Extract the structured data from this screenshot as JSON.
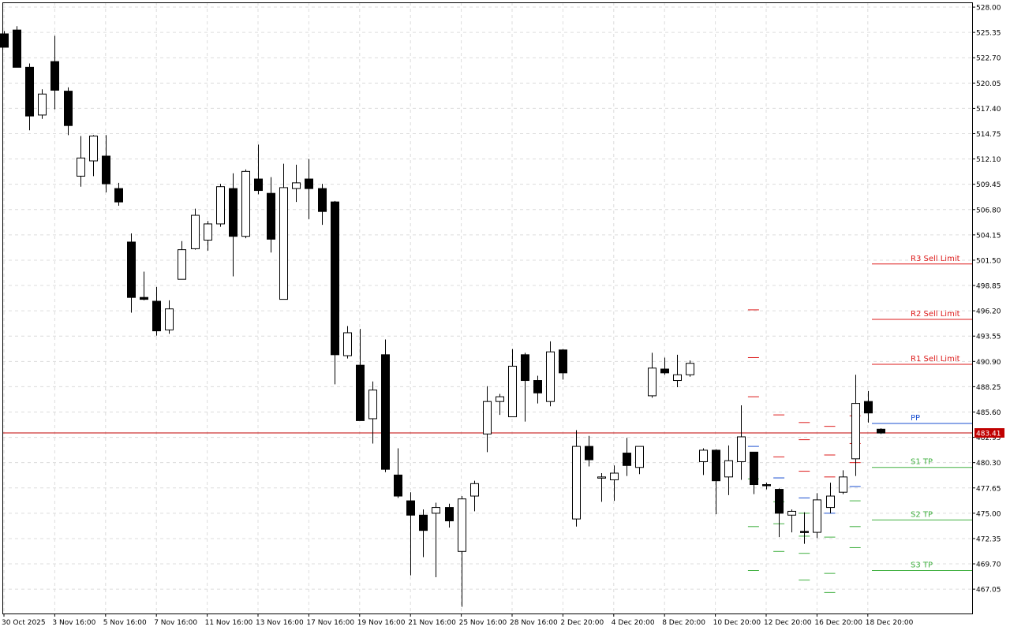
{
  "chart_data": {
    "type": "candlestick",
    "ylim": [
      464.5,
      528.5
    ],
    "y_ticks": [
      "528.00",
      "525.35",
      "522.70",
      "520.05",
      "517.40",
      "514.75",
      "512.10",
      "509.45",
      "506.80",
      "504.15",
      "501.50",
      "498.85",
      "496.20",
      "493.55",
      "490.90",
      "488.25",
      "485.60",
      "482.95",
      "480.30",
      "477.65",
      "475.00",
      "472.35",
      "469.70",
      "467.05"
    ],
    "x_labels": [
      {
        "i": 0,
        "text": "30 Oct 2025"
      },
      {
        "i": 4,
        "text": "3 Nov 16:00"
      },
      {
        "i": 8,
        "text": "5 Nov 16:00"
      },
      {
        "i": 12,
        "text": "7 Nov 16:00"
      },
      {
        "i": 16,
        "text": "11 Nov 16:00"
      },
      {
        "i": 20,
        "text": "13 Nov 16:00"
      },
      {
        "i": 24,
        "text": "17 Nov 16:00"
      },
      {
        "i": 28,
        "text": "19 Nov 16:00"
      },
      {
        "i": 32,
        "text": "21 Nov 16:00"
      },
      {
        "i": 36,
        "text": "25 Nov 16:00"
      },
      {
        "i": 40,
        "text": "28 Nov 16:00"
      },
      {
        "i": 44,
        "text": "2 Dec 20:00"
      },
      {
        "i": 48,
        "text": "4 Dec 20:00"
      },
      {
        "i": 52,
        "text": "8 Dec 20:00"
      },
      {
        "i": 56,
        "text": "10 Dec 20:00"
      },
      {
        "i": 60,
        "text": "12 Dec 20:00"
      },
      {
        "i": 64,
        "text": "16 Dec 20:00"
      },
      {
        "i": 68,
        "text": "18 Dec 20:00"
      }
    ],
    "grid": true,
    "candles": [
      {
        "o": 525.2,
        "h": 525.5,
        "l": 523.8,
        "c": 523.8
      },
      {
        "o": 525.6,
        "h": 526.0,
        "l": 521.7,
        "c": 521.7
      },
      {
        "o": 521.7,
        "h": 522.1,
        "l": 515.1,
        "c": 516.6
      },
      {
        "o": 516.7,
        "h": 519.4,
        "l": 516.3,
        "c": 518.9
      },
      {
        "o": 522.3,
        "h": 525.0,
        "l": 517.3,
        "c": 519.3
      },
      {
        "o": 519.2,
        "h": 519.6,
        "l": 514.6,
        "c": 515.6
      },
      {
        "o": 510.3,
        "h": 514.5,
        "l": 509.2,
        "c": 512.2
      },
      {
        "o": 511.9,
        "h": 514.6,
        "l": 510.3,
        "c": 514.5
      },
      {
        "o": 512.4,
        "h": 514.6,
        "l": 508.6,
        "c": 509.5
      },
      {
        "o": 509.0,
        "h": 509.6,
        "l": 507.2,
        "c": 507.6
      },
      {
        "o": 503.4,
        "h": 504.3,
        "l": 496.0,
        "c": 497.6
      },
      {
        "o": 497.6,
        "h": 500.3,
        "l": 497.3,
        "c": 497.4
      },
      {
        "o": 497.2,
        "h": 498.7,
        "l": 493.6,
        "c": 494.1
      },
      {
        "o": 494.2,
        "h": 497.3,
        "l": 493.8,
        "c": 496.4
      },
      {
        "o": 499.5,
        "h": 503.5,
        "l": 499.5,
        "c": 502.6
      },
      {
        "o": 502.7,
        "h": 506.9,
        "l": 502.6,
        "c": 506.2
      },
      {
        "o": 503.6,
        "h": 505.6,
        "l": 502.5,
        "c": 505.3
      },
      {
        "o": 505.3,
        "h": 509.5,
        "l": 505.0,
        "c": 509.2
      },
      {
        "o": 509.0,
        "h": 510.6,
        "l": 499.8,
        "c": 504.0
      },
      {
        "o": 504.0,
        "h": 511.0,
        "l": 503.8,
        "c": 510.8
      },
      {
        "o": 510.0,
        "h": 513.6,
        "l": 508.4,
        "c": 508.8
      },
      {
        "o": 508.5,
        "h": 510.2,
        "l": 502.3,
        "c": 503.7
      },
      {
        "o": 497.4,
        "h": 511.6,
        "l": 497.4,
        "c": 509.1
      },
      {
        "o": 509.0,
        "h": 511.5,
        "l": 507.6,
        "c": 509.6
      },
      {
        "o": 510.0,
        "h": 512.1,
        "l": 505.8,
        "c": 509.0
      },
      {
        "o": 509.0,
        "h": 509.5,
        "l": 505.2,
        "c": 506.6
      },
      {
        "o": 507.6,
        "h": 507.7,
        "l": 488.5,
        "c": 491.6
      },
      {
        "o": 491.5,
        "h": 494.6,
        "l": 491.2,
        "c": 493.9
      },
      {
        "o": 490.5,
        "h": 494.3,
        "l": 484.7,
        "c": 484.7
      },
      {
        "o": 484.9,
        "h": 488.8,
        "l": 482.3,
        "c": 487.9
      },
      {
        "o": 491.6,
        "h": 493.2,
        "l": 479.3,
        "c": 479.6
      },
      {
        "o": 479.0,
        "h": 481.8,
        "l": 476.6,
        "c": 476.8
      },
      {
        "o": 476.3,
        "h": 477.2,
        "l": 468.5,
        "c": 474.8
      },
      {
        "o": 474.8,
        "h": 475.4,
        "l": 470.4,
        "c": 473.2
      },
      {
        "o": 475.0,
        "h": 476.1,
        "l": 468.3,
        "c": 475.6
      },
      {
        "o": 475.6,
        "h": 476.0,
        "l": 473.5,
        "c": 474.2
      },
      {
        "o": 471.0,
        "h": 476.8,
        "l": 465.2,
        "c": 476.5
      },
      {
        "o": 476.8,
        "h": 478.4,
        "l": 475.2,
        "c": 478.1
      },
      {
        "o": 483.3,
        "h": 488.3,
        "l": 481.4,
        "c": 486.7
      },
      {
        "o": 486.7,
        "h": 487.5,
        "l": 485.3,
        "c": 487.2
      },
      {
        "o": 485.1,
        "h": 492.2,
        "l": 485.1,
        "c": 490.4
      },
      {
        "o": 491.6,
        "h": 491.8,
        "l": 484.6,
        "c": 488.9
      },
      {
        "o": 488.9,
        "h": 489.4,
        "l": 486.5,
        "c": 487.6
      },
      {
        "o": 486.7,
        "h": 493.0,
        "l": 486.2,
        "c": 491.9
      },
      {
        "o": 492.1,
        "h": 492.2,
        "l": 489.0,
        "c": 489.7
      },
      {
        "o": 474.4,
        "h": 483.7,
        "l": 473.6,
        "c": 482.0
      },
      {
        "o": 482.0,
        "h": 483.1,
        "l": 479.9,
        "c": 480.6
      },
      {
        "o": 478.8,
        "h": 479.2,
        "l": 476.2,
        "c": 478.8
      },
      {
        "o": 478.5,
        "h": 480.0,
        "l": 476.3,
        "c": 479.2
      },
      {
        "o": 481.3,
        "h": 482.9,
        "l": 478.9,
        "c": 480.0
      },
      {
        "o": 479.8,
        "h": 482.0,
        "l": 479.1,
        "c": 482.0
      },
      {
        "o": 487.3,
        "h": 491.8,
        "l": 487.1,
        "c": 490.2
      },
      {
        "o": 490.1,
        "h": 491.3,
        "l": 489.5,
        "c": 489.7
      },
      {
        "o": 488.9,
        "h": 491.6,
        "l": 488.2,
        "c": 489.5
      },
      {
        "o": 489.5,
        "h": 491.0,
        "l": 489.3,
        "c": 490.7
      },
      {
        "o": 480.4,
        "h": 481.8,
        "l": 479.0,
        "c": 481.6
      },
      {
        "o": 481.6,
        "h": 481.7,
        "l": 474.9,
        "c": 478.4
      },
      {
        "o": 478.8,
        "h": 482.1,
        "l": 476.9,
        "c": 480.5
      },
      {
        "o": 480.4,
        "h": 486.3,
        "l": 478.5,
        "c": 483.0
      },
      {
        "o": 481.4,
        "h": 481.4,
        "l": 477.0,
        "c": 478.0
      },
      {
        "o": 478.0,
        "h": 478.2,
        "l": 477.5,
        "c": 477.9
      },
      {
        "o": 477.5,
        "h": 477.6,
        "l": 472.5,
        "c": 475.0
      },
      {
        "o": 474.8,
        "h": 475.4,
        "l": 473.0,
        "c": 475.2
      },
      {
        "o": 473.1,
        "h": 475.1,
        "l": 471.8,
        "c": 473.0
      },
      {
        "o": 473.0,
        "h": 477.1,
        "l": 472.4,
        "c": 476.4
      },
      {
        "o": 475.6,
        "h": 478.2,
        "l": 475.0,
        "c": 476.8
      },
      {
        "o": 477.2,
        "h": 479.5,
        "l": 477.0,
        "c": 478.8
      },
      {
        "o": 480.7,
        "h": 489.5,
        "l": 478.9,
        "c": 486.5
      },
      {
        "o": 486.7,
        "h": 487.8,
        "l": 484.5,
        "c": 485.5
      },
      {
        "o": 483.8,
        "h": 483.9,
        "l": 483.3,
        "c": 483.4
      }
    ],
    "pivot_ticks": [
      {
        "i": 59,
        "v": 496.3,
        "role": "r"
      },
      {
        "i": 59,
        "v": 491.3,
        "role": "r"
      },
      {
        "i": 59,
        "v": 487.2,
        "role": "r"
      },
      {
        "i": 59,
        "v": 482.0,
        "role": "pp"
      },
      {
        "i": 59,
        "v": 478.6,
        "role": "s"
      },
      {
        "i": 59,
        "v": 473.6,
        "role": "s"
      },
      {
        "i": 59,
        "v": 469.0,
        "role": "s"
      },
      {
        "i": 61,
        "v": 485.3,
        "role": "r"
      },
      {
        "i": 61,
        "v": 480.9,
        "role": "r"
      },
      {
        "i": 61,
        "v": 478.7,
        "role": "pp"
      },
      {
        "i": 61,
        "v": 476.2,
        "role": "s"
      },
      {
        "i": 61,
        "v": 473.9,
        "role": "s"
      },
      {
        "i": 61,
        "v": 471.0,
        "role": "s"
      },
      {
        "i": 63,
        "v": 484.5,
        "role": "r"
      },
      {
        "i": 63,
        "v": 482.7,
        "role": "r"
      },
      {
        "i": 63,
        "v": 479.4,
        "role": "r"
      },
      {
        "i": 63,
        "v": 476.6,
        "role": "pp"
      },
      {
        "i": 63,
        "v": 475.0,
        "role": "s"
      },
      {
        "i": 63,
        "v": 472.6,
        "role": "s"
      },
      {
        "i": 63,
        "v": 470.8,
        "role": "s"
      },
      {
        "i": 63,
        "v": 468.0,
        "role": "s"
      },
      {
        "i": 65,
        "v": 484.1,
        "role": "r"
      },
      {
        "i": 65,
        "v": 481.1,
        "role": "r"
      },
      {
        "i": 65,
        "v": 478.8,
        "role": "r"
      },
      {
        "i": 65,
        "v": 475.0,
        "role": "pp"
      },
      {
        "i": 65,
        "v": 472.5,
        "role": "s"
      },
      {
        "i": 65,
        "v": 468.7,
        "role": "s"
      },
      {
        "i": 65,
        "v": 466.7,
        "role": "s"
      },
      {
        "i": 67,
        "v": 485.2,
        "role": "r"
      },
      {
        "i": 67,
        "v": 482.3,
        "role": "r"
      },
      {
        "i": 67,
        "v": 480.3,
        "role": "r"
      },
      {
        "i": 67,
        "v": 477.8,
        "role": "pp"
      },
      {
        "i": 67,
        "v": 476.3,
        "role": "s"
      },
      {
        "i": 67,
        "v": 473.6,
        "role": "s"
      },
      {
        "i": 67,
        "v": 471.4,
        "role": "s"
      }
    ],
    "levels": [
      {
        "label": "R3 Sell Limit",
        "value": 501.1,
        "color": "#dd1a1a"
      },
      {
        "label": "R2 Sell Limit",
        "value": 495.3,
        "color": "#dd1a1a"
      },
      {
        "label": "R1 Sell Limit",
        "value": 490.6,
        "color": "#dd1a1a"
      },
      {
        "label": "PP",
        "value": 484.4,
        "color": "#1a4fd0"
      },
      {
        "label": "S1 TP",
        "value": 479.8,
        "color": "#40b040"
      },
      {
        "label": "S2 TP",
        "value": 474.3,
        "color": "#40b040"
      },
      {
        "label": "S3 TP",
        "value": 469.0,
        "color": "#40b040"
      }
    ],
    "current_price": {
      "value": 483.41,
      "label": "483.41",
      "color": "#c00000"
    }
  },
  "colors": {
    "bull_fill": "#ffffff",
    "bear_fill": "#000000",
    "candle_edge": "#000000",
    "grid": "#dcdcdc",
    "axis": "#000000"
  }
}
